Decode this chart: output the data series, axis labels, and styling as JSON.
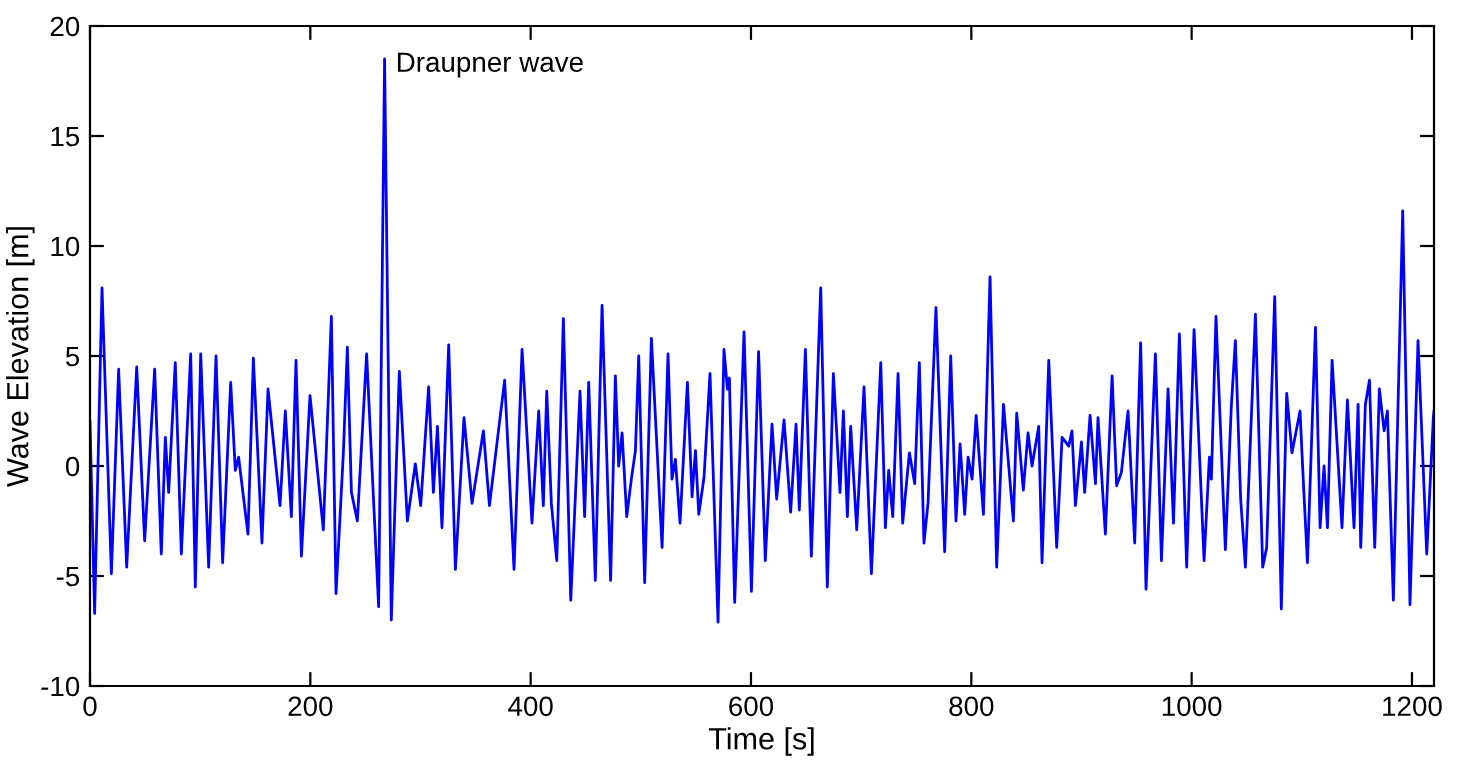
{
  "chart_data": {
    "type": "line",
    "xlabel": "Time [s]",
    "ylabel": "Wave Elevation [m]",
    "xlim": [
      0,
      1220
    ],
    "ylim": [
      -10,
      20
    ],
    "xticks": [
      0,
      200,
      400,
      600,
      800,
      1000,
      1200
    ],
    "yticks": [
      -10,
      -5,
      0,
      5,
      10,
      15,
      20
    ],
    "grid": false,
    "legend": false,
    "annotations": [
      {
        "text": "Draupner wave",
        "x": 267.4,
        "y": 18.5
      }
    ],
    "series": [
      {
        "color": "#0000ff",
        "x": [
          0,
          4.2,
          10.9,
          19.4,
          26,
          33.3,
          42.4,
          49.6,
          58.7,
          64.7,
          68.4,
          71.4,
          77.4,
          82.9,
          91.4,
          95.6,
          100.5,
          107.7,
          114.4,
          120.4,
          127.7,
          131.9,
          134.9,
          143.4,
          148.3,
          156.1,
          161.6,
          172.5,
          177.3,
          182.8,
          187,
          191.9,
          199.7,
          211.8,
          219.1,
          223.3,
          230,
          233.6,
          237.3,
          242.7,
          251.1,
          262,
          267.4,
          273.5,
          280.8,
          288.1,
          295.3,
          300.2,
          307.4,
          311.7,
          315.4,
          319.5,
          325.6,
          331.7,
          339.5,
          346.8,
          357.1,
          362.6,
          369.8,
          376.4,
          384.9,
          392.2,
          401.2,
          407.3,
          411.5,
          414.6,
          418.8,
          423.7,
          429.7,
          436.4,
          444.8,
          449,
          452.7,
          458.7,
          464.8,
          472.6,
          476.9,
          479.9,
          483,
          487.2,
          491.4,
          495.1,
          498.1,
          503.5,
          509.6,
          519.3,
          524.7,
          528.3,
          531.4,
          535.6,
          542.3,
          546.5,
          549.6,
          552.6,
          557.4,
          562.8,
          570.1,
          575.5,
          578.6,
          580.4,
          585.2,
          593.7,
          600.4,
          606.9,
          613,
          619.1,
          623.3,
          630,
          636,
          640.9,
          643.9,
          649.4,
          654.8,
          663.3,
          669.3,
          674.8,
          680.8,
          683.9,
          687.5,
          690.5,
          696,
          702.6,
          709.3,
          717.8,
          722,
          725,
          728.7,
          733.5,
          737.7,
          743.8,
          748.6,
          752.8,
          757,
          760.7,
          767.9,
          775.8,
          781.3,
          786.1,
          789.8,
          794,
          797.1,
          800.7,
          804.4,
          811,
          817,
          823,
          829.2,
          838.2,
          841.2,
          847.2,
          851.5,
          855.1,
          861.2,
          864.2,
          870.3,
          877.5,
          882.4,
          888.4,
          891.4,
          894.5,
          900,
          902.9,
          907.8,
          912.7,
          915,
          921.7,
          927.8,
          931.9,
          936.2,
          942.3,
          948.3,
          953.7,
          958.6,
          967.1,
          972.6,
          978.6,
          983.5,
          988.9,
          995.5,
          1002.2,
          1011.3,
          1016.1,
          1017.9,
          1022.1,
          1030.6,
          1036,
          1039.7,
          1044.5,
          1048.8,
          1057.9,
          1064.5,
          1068.1,
          1075.4,
          1081.4,
          1086.3,
          1091.1,
          1098.4,
          1100.9,
          1105.1,
          1112.4,
          1116.6,
          1120.2,
          1123.3,
          1127.5,
          1136.5,
          1141.4,
          1147.4,
          1151.1,
          1153.5,
          1157.7,
          1161.4,
          1166.2,
          1170.4,
          1174.7,
          1177.7,
          1183.1,
          1191.6,
          1198.2,
          1205.5,
          1213.4,
          1219.4,
          1220
        ],
        "values": [
          2.0,
          -6.7,
          8.1,
          -4.9,
          4.4,
          -4.6,
          4.5,
          -3.4,
          4.4,
          -4.0,
          1.3,
          -1.2,
          4.7,
          -4.0,
          5.1,
          -5.5,
          5.1,
          -4.6,
          5.0,
          -4.4,
          3.8,
          -0.2,
          0.4,
          -3.1,
          4.9,
          -3.5,
          3.5,
          -1.8,
          2.5,
          -2.3,
          4.8,
          -4.1,
          3.2,
          -2.9,
          6.8,
          -5.8,
          0.6,
          5.4,
          -1.2,
          -2.5,
          5.1,
          -6.4,
          18.5,
          -7.0,
          4.3,
          -2.5,
          0.1,
          -1.8,
          3.6,
          -1.2,
          1.8,
          -2.8,
          5.5,
          -4.7,
          2.2,
          -1.7,
          1.6,
          -1.8,
          1.2,
          3.9,
          -4.7,
          5.3,
          -2.6,
          2.5,
          -1.8,
          3.4,
          -1.7,
          -4.3,
          6.7,
          -6.1,
          3.4,
          -2.3,
          3.8,
          -5.2,
          7.3,
          -5.2,
          4.1,
          0.0,
          1.5,
          -2.3,
          -0.6,
          0.7,
          5.0,
          -5.3,
          5.8,
          -3.7,
          5.1,
          -0.6,
          0.3,
          -2.6,
          3.8,
          -1.4,
          0.7,
          -2.2,
          -0.5,
          4.2,
          -7.1,
          5.3,
          3.5,
          4.0,
          -6.2,
          6.1,
          -5.7,
          5.2,
          -4.3,
          1.9,
          -1.5,
          2.1,
          -2.1,
          1.9,
          -2.0,
          5.3,
          -4.1,
          8.1,
          -5.5,
          4.2,
          -1.2,
          2.5,
          -2.3,
          1.8,
          -2.9,
          3.6,
          -4.9,
          4.7,
          -2.8,
          -0.2,
          -2.3,
          4.2,
          -2.6,
          0.6,
          -0.8,
          4.7,
          -3.5,
          -1.7,
          7.2,
          -3.9,
          5.0,
          -2.5,
          1.0,
          -2.2,
          0.4,
          -0.6,
          2.3,
          -2.2,
          8.6,
          -4.6,
          2.8,
          -2.5,
          2.4,
          -1.1,
          1.5,
          0.0,
          1.8,
          -4.4,
          4.8,
          -3.7,
          1.3,
          0.9,
          1.6,
          -1.8,
          1.1,
          -1.2,
          2.3,
          -0.8,
          2.2,
          -3.1,
          4.1,
          -0.9,
          -0.3,
          2.5,
          -3.5,
          5.6,
          -5.6,
          5.1,
          -4.3,
          3.5,
          -2.6,
          6.0,
          -4.6,
          6.2,
          -4.3,
          0.4,
          -0.6,
          6.8,
          -3.8,
          2.7,
          5.7,
          -1.5,
          -4.6,
          6.9,
          -4.6,
          -3.7,
          7.7,
          -6.5,
          3.3,
          0.6,
          2.5,
          -0.2,
          -4.4,
          6.3,
          -2.8,
          0.0,
          -2.8,
          4.8,
          -2.8,
          3.0,
          -2.8,
          2.8,
          -3.7,
          2.8,
          3.9,
          -3.7,
          3.5,
          1.6,
          2.5,
          -6.1,
          11.6,
          -6.3,
          5.7,
          -4.0,
          2.2,
          2.5
        ]
      }
    ]
  }
}
